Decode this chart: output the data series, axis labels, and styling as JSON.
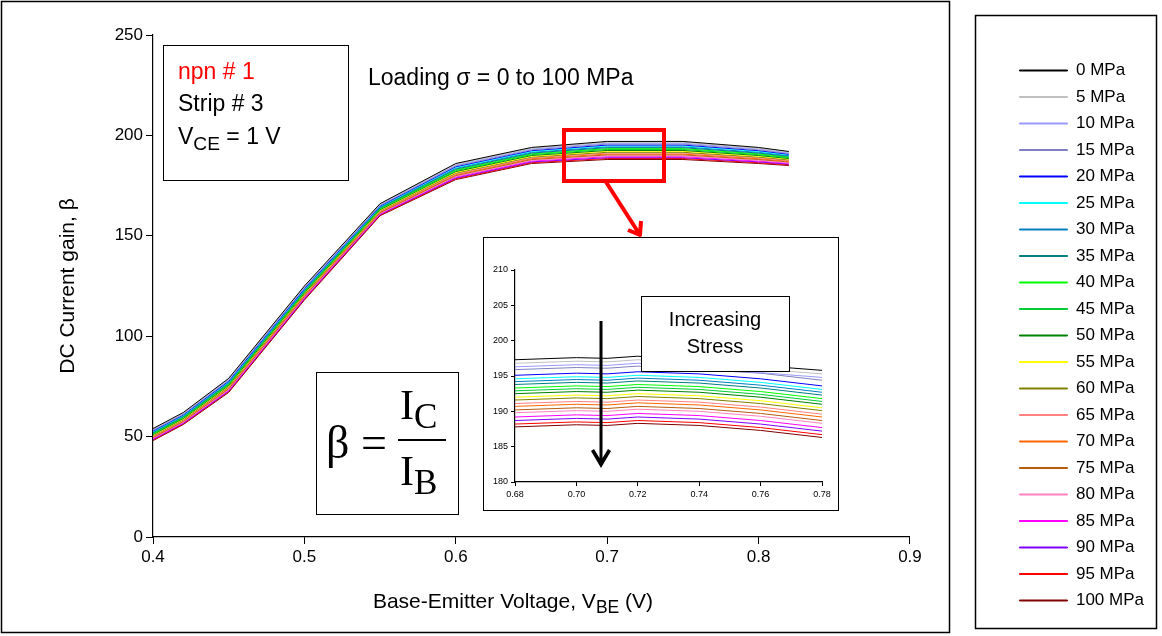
{
  "chart_data": [
    {
      "type": "line",
      "xlabel": "Base-Emitter Voltage, V$_{BE}$ (V)",
      "ylabel": "DC Current gain, β",
      "xlim": [
        0.4,
        0.9
      ],
      "ylim": [
        0,
        250
      ],
      "xticks": [
        0.4,
        0.5,
        0.6,
        0.7,
        0.8,
        0.9
      ],
      "yticks": [
        0,
        50,
        100,
        150,
        200,
        250
      ],
      "grid": false,
      "legend": "right",
      "marker": "none",
      "line_style": "solid",
      "annotations": [
        "npn # 1",
        "Strip # 3",
        "V$_{CE}$ = 1 V",
        "Loading σ = 0 to 100 MPa",
        "β =",
        "I$_{C}$",
        "I$_{B}$"
      ],
      "x": [
        0.4,
        0.42,
        0.45,
        0.5,
        0.55,
        0.6,
        0.65,
        0.7,
        0.75,
        0.8,
        0.82
      ],
      "series": [
        {
          "name": "0 MPa",
          "color": "#000000",
          "values": [
            54,
            62,
            79,
            125,
            166,
            186,
            194,
            197,
            197,
            194,
            192
          ]
        },
        {
          "name": "5 MPa",
          "color": "#c0c0c0",
          "values": [
            53.7,
            61.7,
            78.7,
            124.7,
            165.7,
            185.6,
            193.6,
            196.6,
            196.6,
            193.6,
            191.7
          ]
        },
        {
          "name": "10 MPa",
          "color": "#9999ff",
          "values": [
            53.4,
            61.4,
            78.3,
            124.3,
            165.4,
            185.2,
            193.2,
            196.1,
            196.1,
            193.2,
            191.3
          ]
        },
        {
          "name": "15 MPa",
          "color": "#8080c0",
          "values": [
            53.1,
            61.1,
            78,
            124,
            165.1,
            184.8,
            192.8,
            195.7,
            195.7,
            192.8,
            191
          ]
        },
        {
          "name": "20 MPa",
          "color": "#0000ff",
          "values": [
            52.8,
            60.8,
            77.6,
            123.6,
            164.8,
            184.4,
            192.4,
            195.2,
            195.2,
            192.4,
            190.6
          ]
        },
        {
          "name": "25 MPa",
          "color": "#00ffff",
          "values": [
            52.5,
            60.5,
            77.3,
            123.3,
            164.5,
            184,
            192,
            194.8,
            194.8,
            192,
            190.3
          ]
        },
        {
          "name": "30 MPa",
          "color": "#0080c0",
          "values": [
            52.2,
            60.2,
            76.9,
            122.9,
            164.2,
            183.6,
            191.6,
            194.3,
            194.3,
            191.6,
            189.9
          ]
        },
        {
          "name": "35 MPa",
          "color": "#008080",
          "values": [
            51.9,
            59.9,
            76.6,
            122.6,
            163.9,
            183.2,
            191.2,
            193.9,
            193.9,
            191.2,
            189.6
          ]
        },
        {
          "name": "40 MPa",
          "color": "#00ff00",
          "values": [
            51.6,
            59.6,
            76.2,
            122.2,
            163.6,
            182.8,
            190.8,
            193.4,
            193.4,
            190.8,
            189.2
          ]
        },
        {
          "name": "45 MPa",
          "color": "#00cc33",
          "values": [
            51.3,
            59.3,
            75.9,
            121.9,
            163.3,
            182.4,
            190.4,
            193,
            193,
            190.4,
            188.9
          ]
        },
        {
          "name": "50 MPa",
          "color": "#008000",
          "values": [
            51,
            59,
            75.5,
            121.5,
            163,
            182,
            190,
            192.5,
            192.5,
            190,
            188.5
          ]
        },
        {
          "name": "55 MPa",
          "color": "#ffff00",
          "values": [
            50.7,
            58.7,
            75.2,
            121.2,
            162.7,
            181.6,
            189.6,
            192.1,
            192.1,
            189.6,
            188.2
          ]
        },
        {
          "name": "60 MPa",
          "color": "#808000",
          "values": [
            50.4,
            58.4,
            74.8,
            120.8,
            162.4,
            181.2,
            189.2,
            191.6,
            191.6,
            189.2,
            187.8
          ]
        },
        {
          "name": "65 MPa",
          "color": "#ff8080",
          "values": [
            50.1,
            58.1,
            74.5,
            120.5,
            162.1,
            180.8,
            188.8,
            191.2,
            191.2,
            188.8,
            187.5
          ]
        },
        {
          "name": "70 MPa",
          "color": "#ff6600",
          "values": [
            49.8,
            57.8,
            74.1,
            120.1,
            161.8,
            180.4,
            188.4,
            190.7,
            190.7,
            188.4,
            187.1
          ]
        },
        {
          "name": "75 MPa",
          "color": "#b85c10",
          "values": [
            49.5,
            57.5,
            73.8,
            119.8,
            161.5,
            180,
            188,
            190.3,
            190.3,
            188,
            186.8
          ]
        },
        {
          "name": "80 MPa",
          "color": "#ff80c0",
          "values": [
            49.2,
            57.2,
            73.4,
            119.4,
            161.2,
            179.6,
            187.6,
            189.8,
            189.8,
            187.6,
            186.4
          ]
        },
        {
          "name": "85 MPa",
          "color": "#ff00ff",
          "values": [
            48.9,
            56.9,
            73.1,
            119.1,
            160.9,
            179.2,
            187.2,
            189.4,
            189.4,
            187.2,
            186.1
          ]
        },
        {
          "name": "90 MPa",
          "color": "#8000ff",
          "values": [
            48.6,
            56.6,
            72.7,
            118.7,
            160.6,
            178.8,
            186.8,
            188.9,
            188.9,
            186.8,
            185.7
          ]
        },
        {
          "name": "95 MPa",
          "color": "#ff0000",
          "values": [
            48.3,
            56.3,
            72.4,
            118.4,
            160.3,
            178.4,
            186.4,
            188.5,
            188.5,
            186.4,
            185.4
          ]
        },
        {
          "name": "100 MPa",
          "color": "#800000",
          "values": [
            48,
            56,
            72,
            118,
            160,
            178,
            186,
            188,
            188,
            186,
            185
          ]
        }
      ]
    },
    {
      "type": "line",
      "xlim": [
        0.68,
        0.78
      ],
      "ylim": [
        180,
        210
      ],
      "xticks": [
        0.68,
        {
          "value": 0.7,
          "label": "0.70"
        },
        0.72,
        0.74,
        0.76,
        0.78
      ],
      "yticks": [
        180,
        185,
        190,
        195,
        200,
        205,
        210
      ],
      "grid": false,
      "marker": "none",
      "line_style": "solid",
      "annotations": [
        "Increasing Stress"
      ],
      "x": [
        0.68,
        0.7,
        0.71,
        0.72,
        0.74,
        0.76,
        0.78
      ],
      "series": [
        {
          "color": "#000000",
          "values": [
            197.3,
            197.6,
            197.5,
            197.8,
            null,
            null,
            195.8
          ]
        },
        {
          "color": "#c0c0c0",
          "values": [
            196.8,
            197.1,
            197,
            197.3,
            null,
            null,
            195.3
          ]
        },
        {
          "color": "#9999ff",
          "values": [
            196.3,
            196.6,
            196.5,
            196.8,
            null,
            null,
            194.8
          ]
        },
        {
          "color": "#8080c0",
          "values": [
            195.9,
            196.2,
            196.1,
            196.4,
            null,
            195.4,
            194.4
          ]
        },
        {
          "color": "#0000ff",
          "values": [
            195.1,
            195.4,
            195.3,
            195.6,
            195.3,
            194.6,
            193.6
          ]
        },
        {
          "color": "#00ffff",
          "values": [
            194.6,
            194.9,
            194.8,
            195.1,
            194.8,
            194.1,
            193.1
          ]
        },
        {
          "color": "#0080c0",
          "values": [
            194.2,
            194.5,
            194.4,
            194.7,
            194.4,
            193.7,
            192.7
          ]
        },
        {
          "color": "#008080",
          "values": [
            193.8,
            194.1,
            194,
            194.3,
            194,
            193.3,
            192.3
          ]
        },
        {
          "color": "#00ff00",
          "values": [
            193.3,
            193.6,
            193.5,
            193.8,
            193.5,
            192.8,
            191.8
          ]
        },
        {
          "color": "#00cc33",
          "values": [
            192.9,
            193.2,
            193.1,
            193.4,
            193.1,
            192.4,
            191.4
          ]
        },
        {
          "color": "#008000",
          "values": [
            192.5,
            192.8,
            192.7,
            193,
            192.7,
            192,
            191
          ]
        },
        {
          "color": "#ffff00",
          "values": [
            192,
            192.3,
            192.2,
            192.5,
            192.2,
            191.5,
            190.5
          ]
        },
        {
          "color": "#808000",
          "values": [
            191.6,
            191.9,
            191.8,
            192.1,
            191.8,
            191.1,
            190.1
          ]
        },
        {
          "color": "#ff8080",
          "values": [
            191.1,
            191.4,
            191.3,
            191.6,
            191.3,
            190.6,
            189.6
          ]
        },
        {
          "color": "#ff6600",
          "values": [
            190.7,
            191,
            190.9,
            191.2,
            190.9,
            190.2,
            189.2
          ]
        },
        {
          "color": "#b85c10",
          "values": [
            190.2,
            190.5,
            190.4,
            190.7,
            190.4,
            189.7,
            188.7
          ]
        },
        {
          "color": "#ff80c0",
          "values": [
            189.8,
            190.1,
            190,
            190.3,
            190,
            189.3,
            188.3
          ]
        },
        {
          "color": "#ff00ff",
          "values": [
            189.2,
            189.5,
            189.4,
            189.7,
            189.4,
            188.7,
            187.7
          ]
        },
        {
          "color": "#8000ff",
          "values": [
            188.7,
            189,
            188.9,
            189.2,
            188.9,
            188.2,
            187.2
          ]
        },
        {
          "color": "#ff0000",
          "values": [
            188.2,
            188.5,
            188.4,
            188.7,
            188.4,
            187.7,
            186.7
          ]
        },
        {
          "color": "#800000",
          "values": [
            187.8,
            188.1,
            188,
            188.3,
            188,
            187.3,
            186.3
          ]
        }
      ]
    }
  ]
}
